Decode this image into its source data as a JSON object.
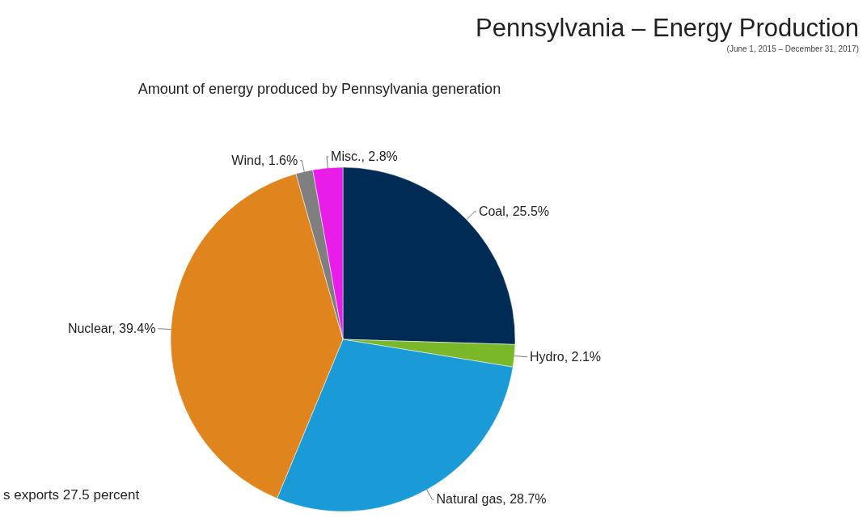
{
  "chart_data": {
    "type": "pie",
    "title": "Pennsylvania – Energy Production",
    "subtitle": "(June 1, 2015 – December 31, 2017)",
    "xlabel": "Amount of energy produced by Pennsylvania generation",
    "categories": [
      "Coal",
      "Hydro",
      "Natural gas",
      "Nuclear",
      "Wind",
      "Misc."
    ],
    "values": [
      25.5,
      2.1,
      28.7,
      39.4,
      1.6,
      2.8
    ],
    "colors": [
      "#002b54",
      "#7ab829",
      "#1a9ad6",
      "#e0851e",
      "#7f7f7f",
      "#e81ee8"
    ],
    "value_labels": [
      ", 25.5%",
      ", 2.1%",
      ", 28.7%",
      ", 39.4%",
      ", 1.6%",
      ", 2.8%"
    ],
    "annotations": [
      "s exports 27.5 percent"
    ]
  }
}
